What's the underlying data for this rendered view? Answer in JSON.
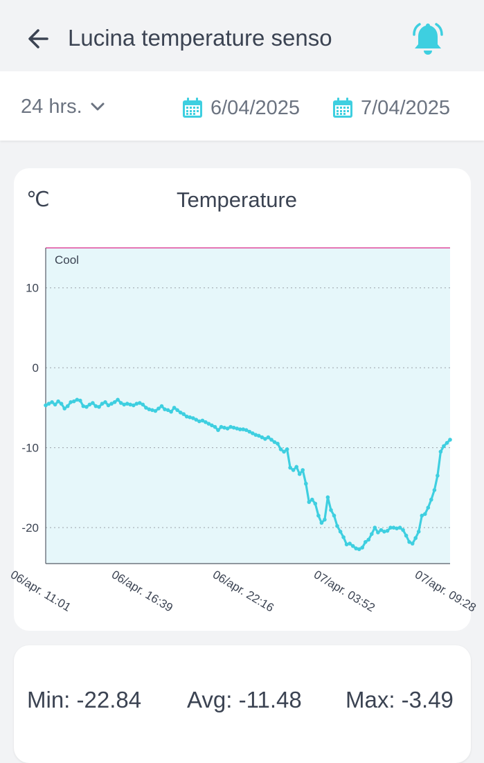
{
  "header": {
    "title": "Lucina temperature senso"
  },
  "filters": {
    "range_label": "24 hrs.",
    "date_from": "6/04/2025",
    "date_to": "7/04/2025"
  },
  "chart_data": {
    "type": "line",
    "title": "Temperature",
    "ylabel": "℃",
    "ylim": [
      -24.5,
      15
    ],
    "yticks": [
      10,
      0,
      -10,
      -20
    ],
    "xticks": [
      "06/apr. 11:01",
      "06/apr. 16:39",
      "06/apr. 22:16",
      "07/apr. 03:52",
      "07/apr. 09:28"
    ],
    "grid": true,
    "band": {
      "label": "Cool",
      "from": -24.5,
      "to": 15,
      "fill": "#e6f7fa",
      "edge": "#e0489c"
    },
    "series": [
      {
        "color": "#3ecfe0",
        "values": [
          -4.7,
          -4.5,
          -4.3,
          -4.6,
          -4.2,
          -4.5,
          -5.1,
          -4.8,
          -4.3,
          -4.2,
          -4.0,
          -4.1,
          -4.8,
          -4.9,
          -4.6,
          -4.4,
          -4.8,
          -4.9,
          -4.5,
          -4.3,
          -4.7,
          -4.5,
          -4.3,
          -4.0,
          -4.4,
          -4.6,
          -4.5,
          -4.6,
          -4.7,
          -4.5,
          -4.4,
          -4.6,
          -5.0,
          -5.2,
          -5.3,
          -5.4,
          -5.1,
          -4.8,
          -5.2,
          -5.3,
          -5.5,
          -5.0,
          -5.3,
          -5.6,
          -5.8,
          -6.1,
          -6.2,
          -6.3,
          -6.5,
          -6.7,
          -6.6,
          -6.8,
          -7.0,
          -7.2,
          -7.4,
          -7.8,
          -7.4,
          -7.5,
          -7.6,
          -7.4,
          -7.5,
          -7.6,
          -7.7,
          -7.7,
          -7.8,
          -8.0,
          -8.2,
          -8.4,
          -8.5,
          -8.7,
          -8.9,
          -8.7,
          -9.0,
          -9.3,
          -9.5,
          -10.2,
          -10.5,
          -10.2,
          -12.5,
          -12.8,
          -12.4,
          -13.3,
          -12.8,
          -14.5,
          -16.8,
          -16.5,
          -17.0,
          -18.5,
          -19.4,
          -19.0,
          -16.2,
          -17.8,
          -18.5,
          -19.8,
          -20.5,
          -21.2,
          -22.1,
          -22.0,
          -22.3,
          -22.6,
          -22.7,
          -22.5,
          -21.8,
          -21.5,
          -20.8,
          -20.0,
          -20.6,
          -20.3,
          -20.5,
          -20.4,
          -20.0,
          -20.0,
          -20.1,
          -20.0,
          -20.3,
          -21.0,
          -21.8,
          -22.0,
          -21.3,
          -20.5,
          -18.5,
          -18.3,
          -17.5,
          -16.5,
          -15.3,
          -13.5,
          -10.5,
          -9.8,
          -9.4,
          -9.0
        ]
      }
    ]
  },
  "stats": {
    "min": "Min: -22.84",
    "avg": "Avg: -11.48",
    "max": "Max: -3.49"
  },
  "colors": {
    "accent": "#3ecfe0",
    "band_fill": "#e6f7fa",
    "band_edge": "#e0489c",
    "text": "#3b4352"
  },
  "icons": {
    "back": "arrow-left-icon",
    "bell": "bell-icon",
    "dropdown": "chevron-down-icon",
    "calendar": "calendar-icon"
  }
}
